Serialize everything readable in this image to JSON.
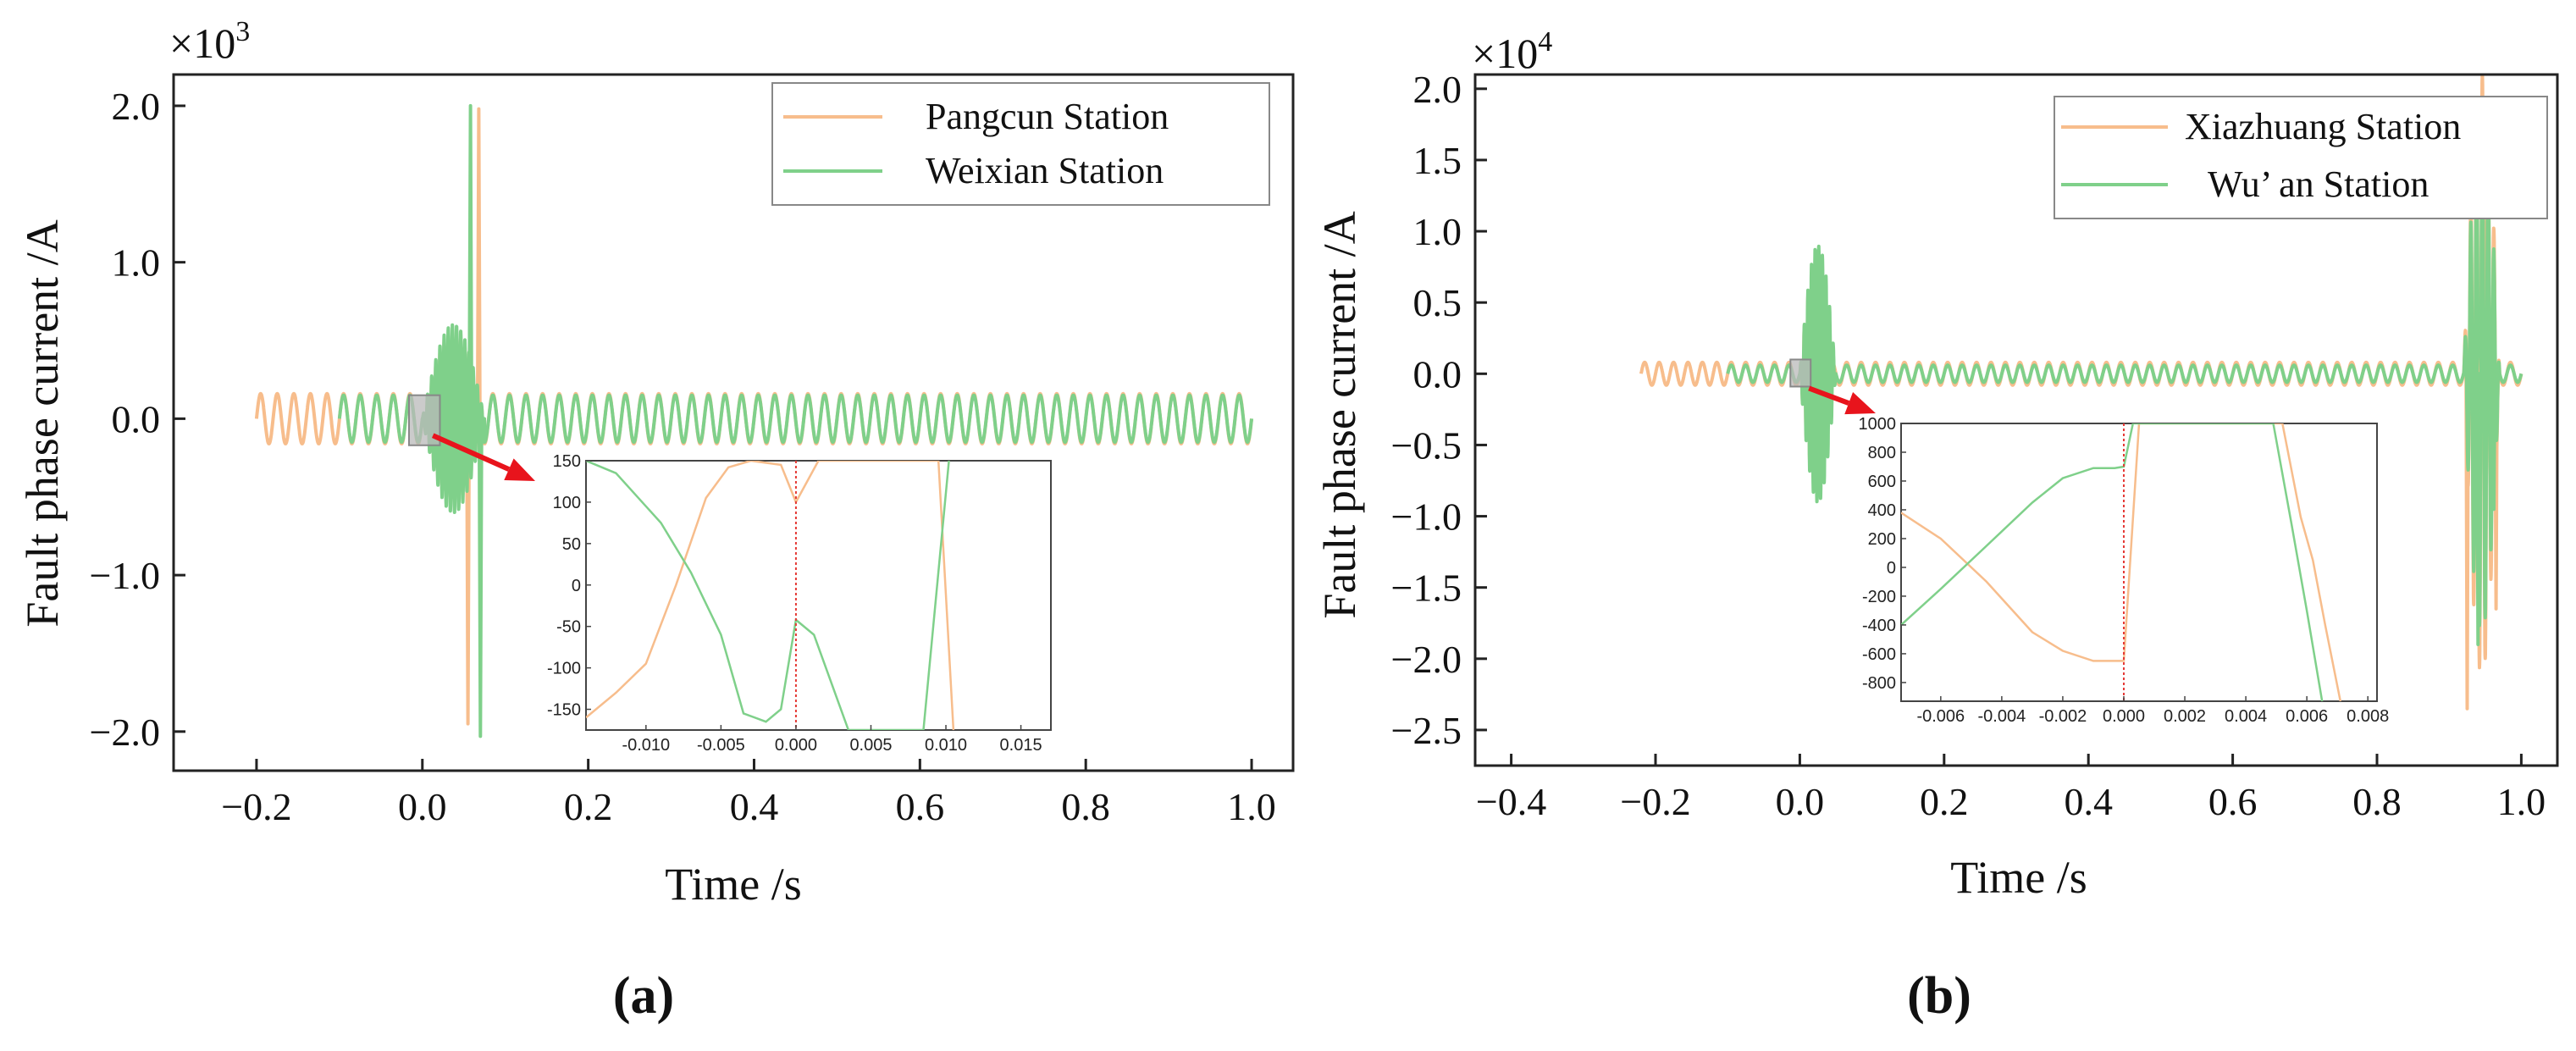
{
  "colors": {
    "orange": "#f7bd8c",
    "green": "#7fd08a",
    "arrow": "#e8141c",
    "marker": "#e53935",
    "frame": "#222222",
    "zoombox": "#b9b9b9"
  },
  "panels": [
    {
      "label": "(a)",
      "multiplier": "×10",
      "exponent": "3"
    },
    {
      "label": "(b)",
      "multiplier": "×10",
      "exponent": "4"
    }
  ],
  "chart_data": [
    {
      "type": "line",
      "title": "",
      "xlabel": "Time /s",
      "ylabel": "Fault phase current /A",
      "xlim": [
        -0.3,
        1.05
      ],
      "ylim": [
        -2.25,
        2.2
      ],
      "y_scale_note": "×10^3",
      "xticks": [
        -0.2,
        0.0,
        0.2,
        0.4,
        0.6,
        0.8,
        1.0
      ],
      "xtick_labels": [
        "−0.2",
        "0.0",
        "0.2",
        "0.4",
        "0.6",
        "0.8",
        "1.0"
      ],
      "yticks": [
        2.0,
        1.0,
        0.0,
        -1.0,
        -2.0
      ],
      "ytick_labels": [
        "2.0",
        "1.0",
        "0.0",
        "−1.0",
        "−2.0"
      ],
      "legend": {
        "placement": "top-right",
        "entries": [
          "Pangcun Station",
          "Weixian Station"
        ]
      },
      "series": [
        {
          "name": "Pangcun Station",
          "color": "orange",
          "t_start": -0.2,
          "t_end": 1.0,
          "steady_amplitude": 0.16,
          "frequency_hz": 50,
          "transient": {
            "start": 0.0,
            "end": 0.075,
            "amplitude": 0.55,
            "spikes": [
              [
                0.055,
                -1.95
              ],
              [
                0.068,
                1.98
              ]
            ]
          }
        },
        {
          "name": "Weixian Station",
          "color": "green",
          "t_start": -0.1,
          "t_end": 1.0,
          "steady_amplitude": 0.15,
          "frequency_hz": 50,
          "transient": {
            "start": 0.0,
            "end": 0.075,
            "amplitude": 0.6,
            "spikes": [
              [
                0.058,
                2.0
              ],
              [
                0.07,
                -2.03
              ]
            ]
          }
        }
      ],
      "zoom_region": {
        "x": [
          -0.01,
          0.015
        ],
        "y": [
          -0.17,
          0.15
        ]
      },
      "inset": {
        "xlim": [
          -0.014,
          0.017
        ],
        "ylim": [
          -175,
          150
        ],
        "xticks": [
          -0.01,
          -0.005,
          0.0,
          0.005,
          0.01,
          0.015
        ],
        "xtick_labels": [
          "-0.010",
          "-0.005",
          "0.000",
          "0.005",
          "0.010",
          "0.015"
        ],
        "yticks": [
          150,
          100,
          50,
          0,
          -50,
          -100,
          -150
        ],
        "ytick_labels": [
          "150",
          "100",
          "50",
          "0",
          "-50",
          "-100",
          "-150"
        ],
        "fault_marker_x": 0.0,
        "series": [
          {
            "name": "Pangcun Station",
            "color": "orange",
            "x": [
              -0.014,
              -0.012,
              -0.01,
              -0.008,
              -0.006,
              -0.0045,
              -0.003,
              -0.001,
              0.0,
              0.0015,
              0.003,
              0.0095,
              0.0105
            ],
            "y": [
              -160,
              -130,
              -95,
              0,
              105,
              142,
              150,
              145,
              100,
              150,
              150,
              150,
              -175
            ]
          },
          {
            "name": "Weixian Station",
            "color": "green",
            "x": [
              -0.014,
              -0.012,
              -0.009,
              -0.007,
              -0.005,
              -0.0035,
              -0.002,
              -0.001,
              0.0,
              0.0012,
              0.0035,
              0.0085,
              0.0102
            ],
            "y": [
              150,
              135,
              75,
              15,
              -60,
              -155,
              -165,
              -150,
              -42,
              -60,
              -175,
              -175,
              150
            ]
          }
        ]
      }
    },
    {
      "type": "line",
      "title": "",
      "xlabel": "Time /s",
      "ylabel": "Fault phase current /A",
      "xlim": [
        -0.45,
        1.05
      ],
      "ylim": [
        -2.75,
        2.1
      ],
      "y_scale_note": "×10^4",
      "xticks": [
        -0.4,
        -0.2,
        0.0,
        0.2,
        0.4,
        0.6,
        0.8,
        1.0
      ],
      "xtick_labels": [
        "−0.4",
        "−0.2",
        "0.0",
        "0.2",
        "0.4",
        "0.6",
        "0.8",
        "1.0"
      ],
      "yticks": [
        2.0,
        1.5,
        1.0,
        0.5,
        0.0,
        -0.5,
        -1.0,
        -1.5,
        -2.0,
        -2.5
      ],
      "ytick_labels": [
        "2.0",
        "1.5",
        "1.0",
        "0.5",
        "0.0",
        "−0.5",
        "−1.0",
        "−1.5",
        "−2.0",
        "−2.5"
      ],
      "legend": {
        "placement": "top-right",
        "entries": [
          "Xiazhuang Station",
          "Wu’ an Station"
        ]
      },
      "series": [
        {
          "name": "Xiazhuang Station",
          "color": "orange",
          "t_start": -0.22,
          "t_end": 1.0,
          "steady_amplitude": 0.08,
          "frequency_hz": 50,
          "transient": {
            "start": 0.0,
            "end": 0.04,
            "amplitude": 0.7
          },
          "late_transient": {
            "start": 0.92,
            "end": 0.97,
            "amplitude": 2.1,
            "spikes": [
              [
                0.925,
                -2.35
              ],
              [
                0.948,
                1.1
              ],
              [
                0.965,
                -1.65
              ]
            ]
          }
        },
        {
          "name": "Wu’ an Station",
          "color": "green",
          "t_start": -0.1,
          "t_end": 1.0,
          "steady_amplitude": 0.06,
          "frequency_hz": 50,
          "transient": {
            "start": 0.0,
            "end": 0.05,
            "amplitude": 0.9
          },
          "late_transient": {
            "start": 0.92,
            "end": 0.97,
            "amplitude": 1.8,
            "spikes": [
              [
                0.94,
                -1.9
              ],
              [
                0.955,
                1.1
              ],
              [
                0.962,
                -0.95
              ]
            ]
          }
        }
      ],
      "zoom_region": {
        "x": [
          -0.006,
          0.008
        ],
        "y": [
          -0.09,
          0.1
        ]
      },
      "inset": {
        "xlim": [
          -0.0073,
          0.0083
        ],
        "ylim": [
          -930,
          1000
        ],
        "xticks": [
          -0.006,
          -0.004,
          -0.002,
          0.0,
          0.002,
          0.004,
          0.006,
          0.008
        ],
        "xtick_labels": [
          "-0.006",
          "-0.004",
          "-0.002",
          "0.000",
          "0.002",
          "0.004",
          "0.006",
          "0.008"
        ],
        "yticks": [
          1000,
          800,
          600,
          400,
          200,
          0,
          -200,
          -400,
          -600,
          -800
        ],
        "ytick_labels": [
          "1000",
          "800",
          "600",
          "400",
          "200",
          "0",
          "-200",
          "-400",
          "-600",
          "-800"
        ],
        "fault_marker_x": 0.0,
        "series": [
          {
            "name": "Xiazhuang Station",
            "color": "orange",
            "x": [
              -0.0073,
              -0.006,
              -0.0045,
              -0.003,
              -0.002,
              -0.001,
              -0.0003,
              0.0,
              0.0005,
              0.0007,
              0.0052,
              0.0058,
              0.0062,
              0.0066,
              0.0071
            ],
            "y": [
              380,
              200,
              -100,
              -450,
              -580,
              -650,
              -650,
              -650,
              1000,
              1000,
              1000,
              350,
              50,
              -400,
              -930
            ]
          },
          {
            "name": "Wu’ an Station",
            "color": "green",
            "x": [
              -0.0073,
              -0.006,
              -0.0045,
              -0.003,
              -0.002,
              -0.001,
              -0.0003,
              0.0,
              0.0003,
              0.0005,
              0.0049,
              0.0055,
              0.006,
              0.0065
            ],
            "y": [
              -400,
              -150,
              150,
              450,
              620,
              690,
              690,
              700,
              1000,
              1000,
              1000,
              300,
              -300,
              -930
            ]
          }
        ]
      }
    }
  ]
}
